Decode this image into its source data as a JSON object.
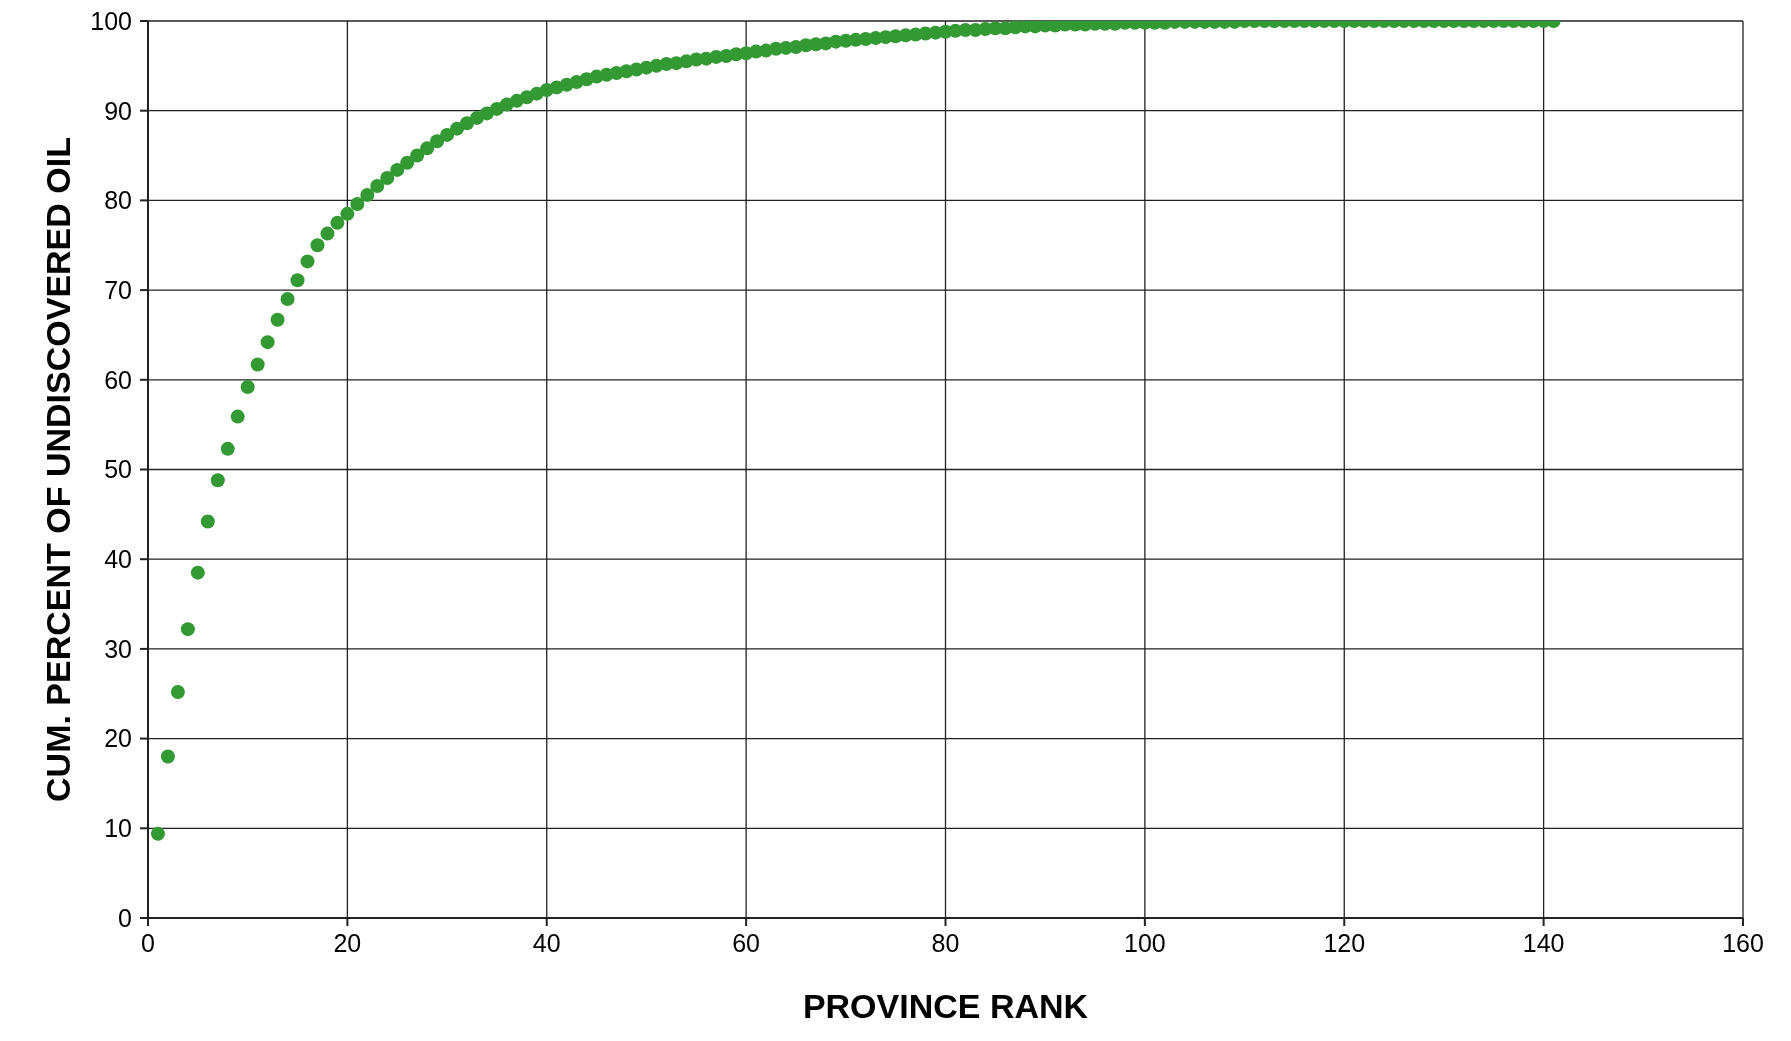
{
  "chart_data": {
    "type": "scatter",
    "xlabel": "PROVINCE RANK",
    "ylabel": "CUM. PERCENT OF UNDISCOVERED OIL",
    "x": [
      1,
      2,
      3,
      4,
      5,
      6,
      7,
      8,
      9,
      10,
      11,
      12,
      13,
      14,
      15,
      16,
      17,
      18,
      19,
      20,
      21,
      22,
      23,
      24,
      25,
      26,
      27,
      28,
      29,
      30,
      31,
      32,
      33,
      34,
      35,
      36,
      37,
      38,
      39,
      40,
      41,
      42,
      43,
      44,
      45,
      46,
      47,
      48,
      49,
      50,
      51,
      52,
      53,
      54,
      55,
      56,
      57,
      58,
      59,
      60,
      61,
      62,
      63,
      64,
      65,
      66,
      67,
      68,
      69,
      70,
      71,
      72,
      73,
      74,
      75,
      76,
      77,
      78,
      79,
      80,
      81,
      82,
      83,
      84,
      85,
      86,
      87,
      88,
      89,
      90,
      91,
      92,
      93,
      94,
      95,
      96,
      97,
      98,
      99,
      100,
      101,
      102,
      103,
      104,
      105,
      106,
      107,
      108,
      109,
      110,
      111,
      112,
      113,
      114,
      115,
      116,
      117,
      118,
      119,
      120,
      121,
      122,
      123,
      124,
      125,
      126,
      127,
      128,
      129,
      130,
      131,
      132,
      133,
      134,
      135,
      136,
      137,
      138,
      139,
      140,
      141
    ],
    "series": [
      {
        "color": "#339933",
        "values": [
          9.4,
          18.0,
          25.2,
          32.2,
          38.5,
          44.2,
          48.8,
          52.3,
          55.9,
          59.2,
          61.7,
          64.2,
          66.7,
          69.0,
          71.1,
          73.2,
          75.0,
          76.3,
          77.5,
          78.5,
          79.6,
          80.6,
          81.6,
          82.5,
          83.4,
          84.2,
          85.0,
          85.8,
          86.6,
          87.3,
          88.0,
          88.6,
          89.2,
          89.7,
          90.2,
          90.7,
          91.1,
          91.5,
          91.9,
          92.3,
          92.6,
          92.9,
          93.2,
          93.5,
          93.8,
          94.0,
          94.2,
          94.4,
          94.6,
          94.8,
          95.0,
          95.2,
          95.3,
          95.5,
          95.7,
          95.8,
          96.0,
          96.1,
          96.3,
          96.4,
          96.6,
          96.7,
          96.9,
          97.0,
          97.1,
          97.3,
          97.4,
          97.5,
          97.7,
          97.8,
          97.9,
          98.0,
          98.1,
          98.2,
          98.3,
          98.4,
          98.5,
          98.6,
          98.7,
          98.8,
          98.9,
          99.0,
          99.0,
          99.1,
          99.2,
          99.2,
          99.3,
          99.4,
          99.4,
          99.5,
          99.5,
          99.6,
          99.6,
          99.6,
          99.7,
          99.7,
          99.7,
          99.8,
          99.8,
          99.8,
          99.8,
          99.8,
          99.9,
          99.9,
          99.9,
          99.9,
          99.9,
          99.9,
          99.9,
          100,
          100,
          100,
          100,
          100,
          100,
          100,
          100,
          100,
          100,
          100,
          100,
          100,
          100,
          100,
          100,
          100,
          100,
          100,
          100,
          100,
          100,
          100,
          100,
          100,
          100,
          100,
          100,
          100,
          100,
          100,
          100
        ]
      }
    ],
    "xlim": [
      0,
      160
    ],
    "xticks": [
      0,
      20,
      40,
      60,
      80,
      100,
      120,
      140,
      160
    ],
    "ylim": [
      0,
      100
    ],
    "yticks": [
      0,
      10,
      20,
      30,
      40,
      50,
      60,
      70,
      80,
      90,
      100
    ],
    "grid": true,
    "legend": false,
    "marker": "circle"
  }
}
